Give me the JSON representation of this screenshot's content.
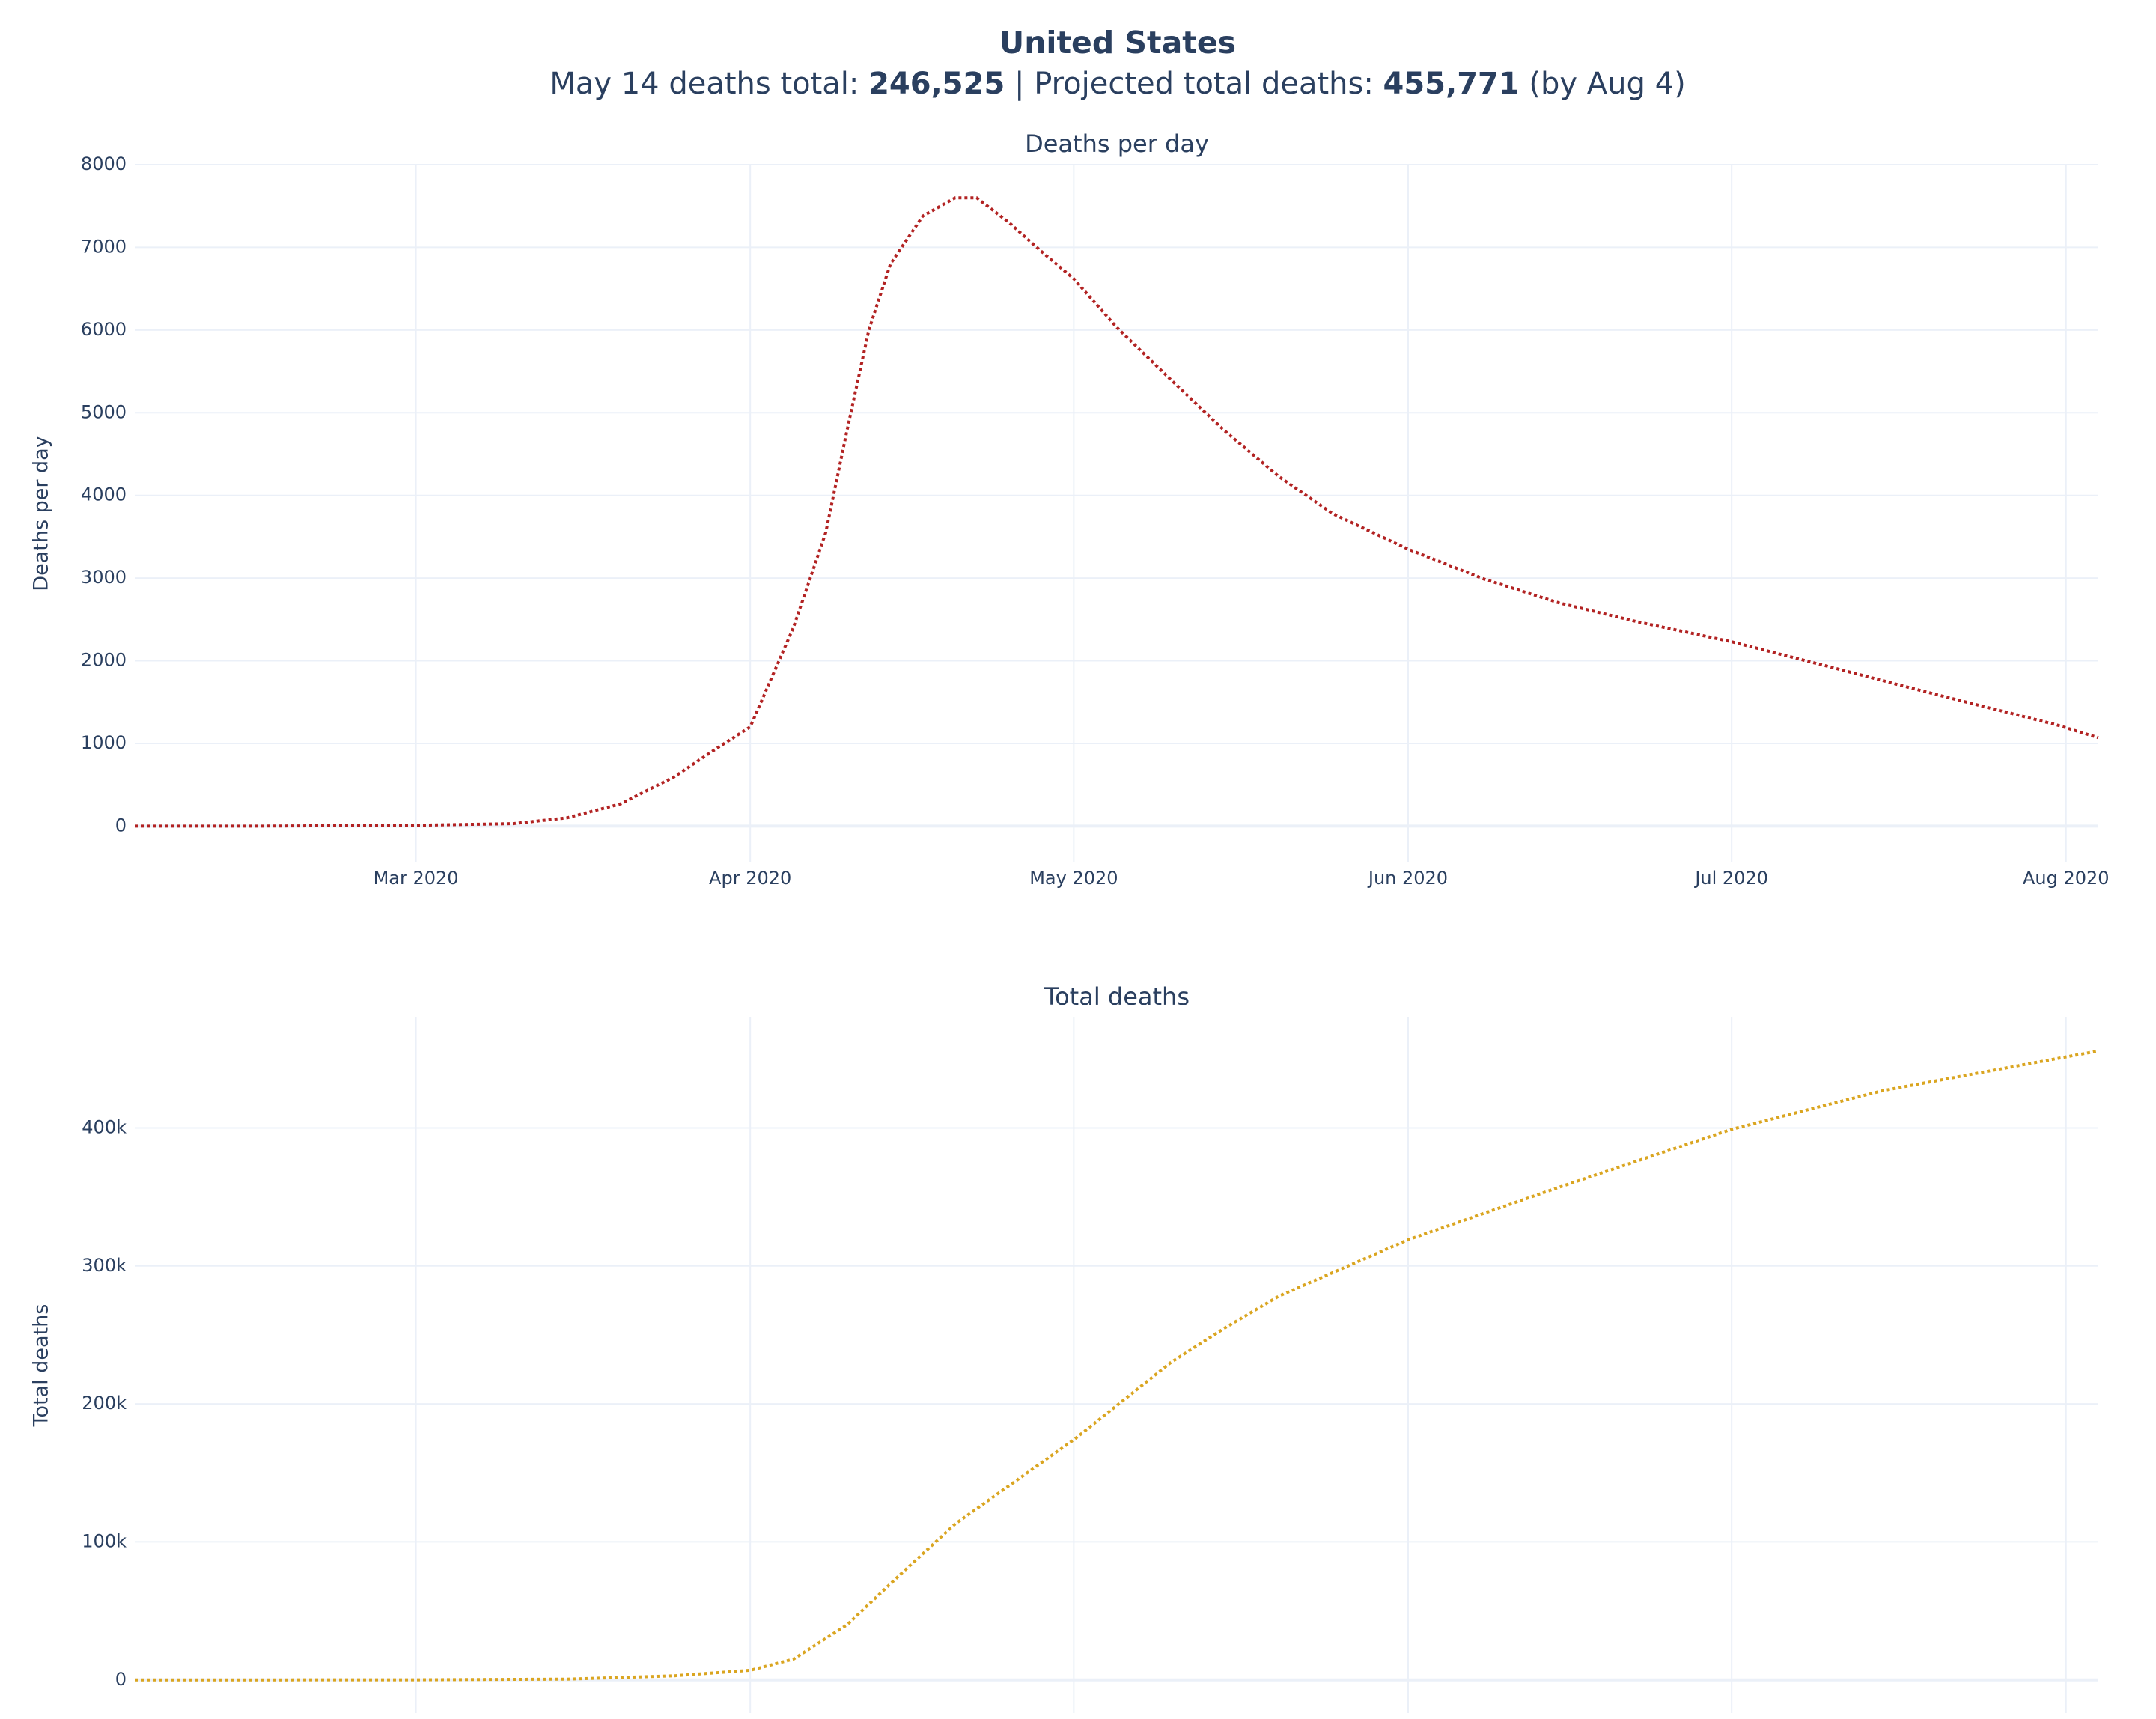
{
  "header": {
    "title": "United States",
    "subtitle": [
      {
        "text": "May 14 deaths total: ",
        "bold": false
      },
      {
        "text": "246,525",
        "bold": true
      },
      {
        "text": " | Projected total deaths: ",
        "bold": false
      },
      {
        "text": "455,771",
        "bold": true
      },
      {
        "text": " (by Aug 4)",
        "bold": false
      }
    ]
  },
  "chart_data": [
    {
      "type": "line",
      "title": "Deaths per day",
      "y_label": "Deaths per day",
      "grid": true,
      "dash": "dot",
      "xlim": [
        "2020-02-04",
        "2020-08-04"
      ],
      "xticks": [
        {
          "value": "2020-03-01",
          "label": "Mar 2020"
        },
        {
          "value": "2020-04-01",
          "label": "Apr 2020"
        },
        {
          "value": "2020-05-01",
          "label": "May 2020"
        },
        {
          "value": "2020-06-01",
          "label": "Jun 2020"
        },
        {
          "value": "2020-07-01",
          "label": "Jul 2020"
        },
        {
          "value": "2020-08-01",
          "label": "Aug 2020"
        }
      ],
      "ylim": [
        -440,
        8000
      ],
      "yticks": [
        0,
        1000,
        2000,
        3000,
        4000,
        5000,
        6000,
        7000,
        8000
      ],
      "x": [
        "2020-02-04",
        "2020-02-15",
        "2020-03-01",
        "2020-03-10",
        "2020-03-15",
        "2020-03-20",
        "2020-03-25",
        "2020-03-29",
        "2020-04-01",
        "2020-04-03",
        "2020-04-05",
        "2020-04-08",
        "2020-04-10",
        "2020-04-12",
        "2020-04-14",
        "2020-04-17",
        "2020-04-20",
        "2020-04-22",
        "2020-04-25",
        "2020-04-28",
        "2020-05-01",
        "2020-05-05",
        "2020-05-10",
        "2020-05-15",
        "2020-05-20",
        "2020-05-25",
        "2020-06-01",
        "2020-06-08",
        "2020-06-15",
        "2020-06-22",
        "2020-07-01",
        "2020-07-10",
        "2020-07-20",
        "2020-07-31",
        "2020-08-04"
      ],
      "series": [
        {
          "color": "#b22222",
          "values": [
            0,
            0,
            10,
            30,
            100,
            270,
            600,
            950,
            1200,
            1800,
            2400,
            3550,
            4800,
            6000,
            6800,
            7380,
            7600,
            7600,
            7300,
            6950,
            6620,
            6030,
            5400,
            4780,
            4230,
            3780,
            3350,
            2990,
            2700,
            2480,
            2230,
            1930,
            1590,
            1230,
            1070
          ]
        }
      ]
    },
    {
      "type": "line",
      "title": "Total deaths",
      "y_label": "Total deaths",
      "grid": true,
      "dash": "dot",
      "xlim": [
        "2020-02-04",
        "2020-08-04"
      ],
      "ylim": [
        -24000,
        480000
      ],
      "yticks": [
        0,
        {
          "value": 100000,
          "label": "100k"
        },
        {
          "value": 200000,
          "label": "200k"
        },
        {
          "value": 300000,
          "label": "300k"
        },
        {
          "value": 400000,
          "label": "400k"
        }
      ],
      "x": [
        "2020-02-04",
        "2020-03-01",
        "2020-03-15",
        "2020-03-25",
        "2020-04-01",
        "2020-04-05",
        "2020-04-10",
        "2020-04-15",
        "2020-04-20",
        "2020-05-01",
        "2020-05-10",
        "2020-05-15",
        "2020-05-20",
        "2020-06-01",
        "2020-06-15",
        "2020-07-01",
        "2020-07-15",
        "2020-08-04"
      ],
      "series": [
        {
          "color": "#daa520",
          "values": [
            0,
            100,
            600,
            3000,
            7000,
            15000,
            40000,
            77000,
            113000,
            174000,
            230000,
            255000,
            278000,
            319000,
            357000,
            399000,
            427000,
            455771
          ]
        }
      ]
    }
  ]
}
